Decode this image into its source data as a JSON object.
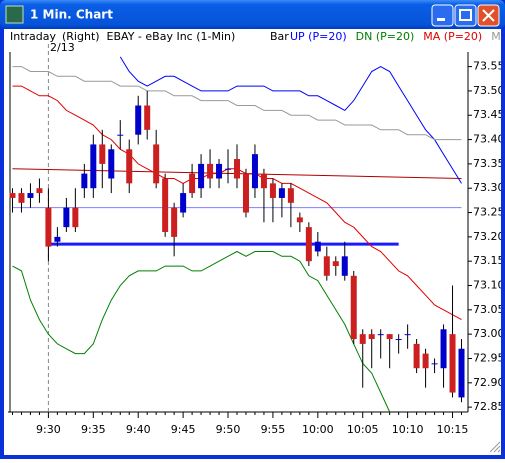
{
  "window": {
    "title": "1 Min. Chart"
  },
  "chart_data": {
    "type": "candlestick",
    "header": {
      "period": "Intraday",
      "symbol": "(Right)  EBAY - eBay Inc (1-Min)",
      "style": "Bar"
    },
    "date_label": "2/13",
    "categories": [
      null,
      null,
      null,
      null,
      "9:30",
      null,
      null,
      null,
      null,
      "9:35",
      null,
      null,
      null,
      null,
      "9:40",
      null,
      null,
      null,
      null,
      "9:45",
      null,
      null,
      null,
      null,
      "9:50",
      null,
      null,
      null,
      null,
      "9:55",
      null,
      null,
      null,
      null,
      "10:00",
      null,
      null,
      null,
      null,
      "10:05",
      null,
      null,
      null,
      null,
      "10:10",
      null,
      null,
      null,
      null,
      "10:15",
      null
    ],
    "open": [
      73.29,
      73.29,
      73.28,
      73.3,
      73.26,
      73.19,
      73.22,
      73.26,
      73.3,
      73.3,
      73.39,
      73.32,
      73.41,
      73.38,
      73.41,
      73.47,
      73.39,
      73.32,
      73.26,
      73.25,
      73.33,
      73.3,
      73.35,
      73.32,
      73.34,
      73.36,
      73.33,
      73.3,
      73.33,
      73.31,
      73.28,
      73.3,
      73.24,
      73.22,
      73.17,
      73.16,
      73.15,
      73.12,
      73.12,
      73.0,
      73.0,
      73.0,
      73.0,
      72.99,
      73.0,
      72.98,
      72.96,
      72.94,
      72.93,
      73.0,
      72.87
    ],
    "high": [
      73.3,
      73.3,
      73.31,
      73.32,
      73.3,
      73.22,
      73.28,
      73.3,
      73.35,
      73.41,
      73.42,
      73.39,
      73.44,
      73.4,
      73.49,
      73.5,
      73.42,
      73.33,
      73.27,
      73.31,
      73.35,
      73.37,
      73.38,
      73.36,
      73.38,
      73.39,
      73.34,
      73.39,
      73.34,
      73.32,
      73.31,
      73.31,
      73.25,
      73.23,
      73.21,
      73.18,
      73.16,
      73.19,
      73.13,
      73.01,
      73.01,
      73.01,
      73.0,
      73.0,
      73.02,
      72.99,
      72.97,
      72.95,
      73.02,
      73.1,
      72.99
    ],
    "low": [
      73.25,
      73.25,
      73.26,
      73.27,
      73.15,
      73.18,
      73.21,
      73.21,
      73.28,
      73.28,
      73.3,
      73.29,
      73.38,
      73.29,
      73.39,
      73.4,
      73.3,
      73.2,
      73.16,
      73.24,
      73.28,
      73.28,
      73.3,
      73.3,
      73.31,
      73.3,
      73.24,
      73.28,
      73.23,
      73.23,
      73.24,
      73.22,
      73.21,
      73.14,
      73.16,
      73.11,
      73.12,
      73.11,
      72.98,
      72.89,
      72.93,
      72.95,
      72.93,
      72.96,
      72.97,
      72.92,
      72.89,
      72.92,
      72.89,
      72.87,
      72.86
    ],
    "close": [
      73.28,
      73.27,
      73.29,
      73.29,
      73.18,
      73.2,
      73.26,
      73.22,
      73.33,
      73.39,
      73.35,
      73.38,
      73.41,
      73.31,
      73.47,
      73.42,
      73.31,
      73.21,
      73.2,
      73.29,
      73.29,
      73.35,
      73.32,
      73.35,
      73.34,
      73.32,
      73.25,
      73.37,
      73.3,
      73.28,
      73.3,
      73.27,
      73.23,
      73.15,
      73.19,
      73.12,
      73.14,
      73.16,
      72.99,
      72.98,
      72.99,
      73.0,
      72.99,
      72.99,
      73.0,
      72.93,
      72.93,
      72.94,
      73.01,
      72.88,
      72.97
    ],
    "up_color": "#0000cc",
    "down_color": "#cc1f1f",
    "series": [
      {
        "name": "UP (P=20)",
        "color": "#0000ff",
        "values": [
          null,
          null,
          null,
          null,
          null,
          null,
          null,
          null,
          null,
          null,
          null,
          null,
          73.57,
          73.54,
          73.52,
          73.51,
          73.52,
          73.53,
          73.53,
          73.52,
          73.51,
          73.5,
          73.5,
          73.5,
          73.5,
          73.51,
          73.51,
          73.51,
          73.51,
          73.5,
          73.5,
          73.5,
          73.5,
          73.49,
          73.49,
          73.48,
          73.47,
          73.46,
          73.48,
          73.51,
          73.54,
          73.55,
          73.54,
          73.51,
          73.48,
          73.45,
          73.42,
          73.4,
          73.37,
          73.34,
          73.31
        ]
      },
      {
        "name": "DN (P=20)",
        "color": "#008000",
        "values": [
          73.14,
          73.13,
          73.07,
          73.03,
          73.0,
          72.98,
          72.97,
          72.96,
          72.96,
          72.98,
          73.03,
          73.07,
          73.1,
          73.12,
          73.13,
          73.13,
          73.13,
          73.14,
          73.14,
          73.14,
          73.13,
          73.13,
          73.14,
          73.15,
          73.16,
          73.17,
          73.16,
          73.17,
          73.17,
          73.17,
          73.16,
          73.16,
          73.15,
          73.12,
          73.11,
          73.08,
          73.05,
          73.02,
          72.98,
          72.94,
          72.92,
          72.88,
          72.84,
          null,
          null,
          null,
          null,
          null,
          null,
          null,
          null
        ]
      },
      {
        "name": "MA (P=20)",
        "color": "#e00000",
        "values": [
          73.51,
          73.51,
          73.5,
          73.49,
          73.49,
          73.48,
          73.46,
          73.45,
          73.44,
          73.43,
          73.41,
          73.4,
          73.38,
          73.37,
          73.35,
          73.34,
          73.33,
          73.32,
          73.32,
          73.31,
          73.32,
          73.32,
          73.33,
          73.33,
          73.34,
          73.34,
          73.33,
          73.33,
          73.32,
          73.32,
          73.31,
          73.31,
          73.3,
          73.29,
          73.28,
          73.27,
          73.25,
          73.23,
          73.22,
          73.2,
          73.18,
          73.17,
          73.15,
          73.13,
          73.12,
          73.1,
          73.08,
          73.06,
          73.05,
          73.04,
          73.03
        ]
      },
      {
        "name": "MA (P=",
        "color": "#999999",
        "values": [
          73.55,
          73.55,
          73.54,
          73.54,
          73.54,
          73.53,
          73.53,
          73.53,
          73.52,
          73.52,
          73.52,
          73.52,
          73.51,
          73.51,
          73.51,
          73.5,
          73.5,
          73.5,
          73.49,
          73.49,
          73.49,
          73.48,
          73.48,
          73.48,
          73.48,
          73.47,
          73.47,
          73.47,
          73.46,
          73.46,
          73.46,
          73.45,
          73.45,
          73.45,
          73.44,
          73.44,
          73.44,
          73.43,
          73.43,
          73.43,
          73.43,
          73.42,
          73.42,
          73.42,
          73.41,
          73.41,
          73.41,
          73.4,
          73.4,
          73.4,
          73.4
        ]
      }
    ],
    "trend_lines": [
      {
        "x": [
          0,
          50
        ],
        "y": [
          73.34,
          73.32
        ],
        "color": "#b00000",
        "width": 1
      },
      {
        "x": [
          0,
          50
        ],
        "y": [
          73.26,
          73.26
        ],
        "color": "#7f7fff",
        "width": 1
      },
      {
        "x": [
          4,
          43
        ],
        "y": [
          73.185,
          73.185
        ],
        "color": "#1a1aff",
        "width": 3
      }
    ],
    "ylim": [
      72.84,
      73.58
    ],
    "yticks": [
      72.85,
      {
        "value": 72.9,
        "label": "72.90"
      },
      72.95,
      {
        "value": 73,
        "label": "73.00"
      },
      73.05,
      {
        "value": 73.1,
        "label": "73.10"
      },
      73.15,
      {
        "value": 73.2,
        "label": "73.20"
      },
      73.25,
      {
        "value": 73.3,
        "label": "73.30"
      },
      73.35,
      {
        "value": 73.4,
        "label": "73.40"
      },
      73.45,
      {
        "value": 73.5,
        "label": "73.50"
      },
      73.55
    ]
  }
}
